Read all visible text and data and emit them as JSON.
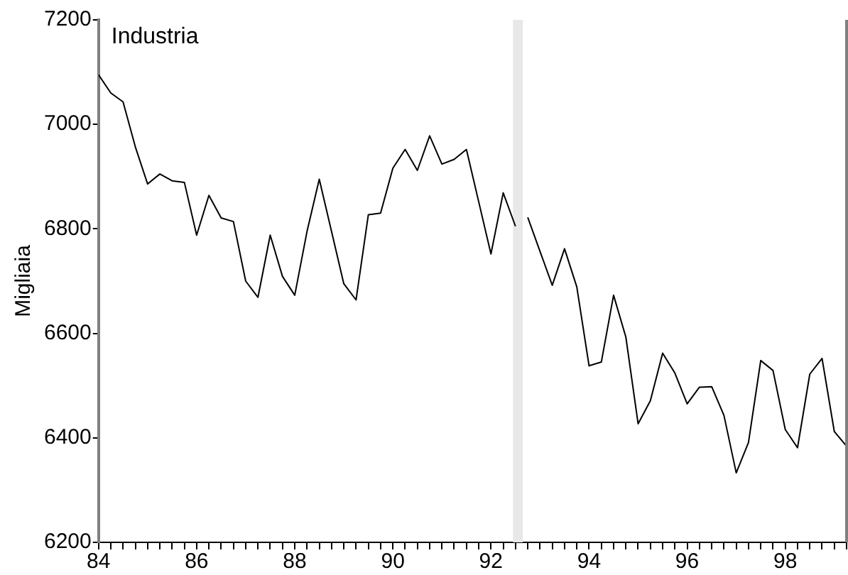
{
  "chart_data": {
    "type": "line",
    "title": "Industria",
    "ylabel": "Migliaia",
    "series": [
      {
        "color": "#000000",
        "x": [
          84,
          84.25,
          84.5,
          84.75,
          85,
          85.25,
          85.5,
          85.75,
          86,
          86.25,
          86.5,
          86.75,
          87,
          87.25,
          87.5,
          87.75,
          88,
          88.25,
          88.5,
          88.75,
          89,
          89.25,
          89.5,
          89.75,
          90,
          90.25,
          90.5,
          90.75,
          91,
          91.25,
          91.5,
          91.75,
          92,
          92.25,
          92.5
        ],
        "values": [
          7095,
          7060,
          7043,
          6957,
          6886,
          6905,
          6892,
          6889,
          6788,
          6864,
          6821,
          6814,
          6700,
          6669,
          6788,
          6709,
          6673,
          6795,
          6895,
          6795,
          6695,
          6664,
          6827,
          6830,
          6916,
          6952,
          6912,
          6978,
          6924,
          6933,
          6952,
          6852,
          6752,
          6869,
          6805
        ]
      },
      {
        "color": "#000000",
        "x": [
          92.75,
          93,
          93.25,
          93.5,
          93.75,
          94,
          94.25,
          94.5,
          94.75,
          95,
          95.25,
          95.5,
          95.75,
          96,
          96.25,
          96.5,
          96.75,
          97,
          97.25,
          97.5,
          97.75,
          98,
          98.25,
          98.5,
          98.75,
          99,
          99.25
        ],
        "values": [
          6822,
          6757,
          6692,
          6762,
          6689,
          6538,
          6545,
          6673,
          6593,
          6427,
          6471,
          6562,
          6524,
          6465,
          6497,
          6498,
          6443,
          6333,
          6391,
          6548,
          6529,
          6416,
          6381,
          6522,
          6552,
          6412,
          6384
        ]
      }
    ],
    "bands": [
      {
        "axis": "x",
        "from": 92.45,
        "to": 92.65,
        "color": "#e8e8e8"
      }
    ],
    "xlim": [
      84,
      99.25
    ],
    "xticks": [
      84,
      {
        "value": 84.25,
        "label": null
      },
      {
        "value": 84.5,
        "label": null
      },
      {
        "value": 84.75,
        "label": null
      },
      {
        "value": 85,
        "label": null
      },
      {
        "value": 85.25,
        "label": null
      },
      {
        "value": 85.5,
        "label": null
      },
      {
        "value": 85.75,
        "label": null
      },
      86,
      {
        "value": 86.25,
        "label": null
      },
      {
        "value": 86.5,
        "label": null
      },
      {
        "value": 86.75,
        "label": null
      },
      {
        "value": 87,
        "label": null
      },
      {
        "value": 87.25,
        "label": null
      },
      {
        "value": 87.5,
        "label": null
      },
      {
        "value": 87.75,
        "label": null
      },
      88,
      {
        "value": 88.25,
        "label": null
      },
      {
        "value": 88.5,
        "label": null
      },
      {
        "value": 88.75,
        "label": null
      },
      {
        "value": 89,
        "label": null
      },
      {
        "value": 89.25,
        "label": null
      },
      {
        "value": 89.5,
        "label": null
      },
      {
        "value": 89.75,
        "label": null
      },
      90,
      {
        "value": 90.25,
        "label": null
      },
      {
        "value": 90.5,
        "label": null
      },
      {
        "value": 90.75,
        "label": null
      },
      {
        "value": 91,
        "label": null
      },
      {
        "value": 91.25,
        "label": null
      },
      {
        "value": 91.5,
        "label": null
      },
      {
        "value": 91.75,
        "label": null
      },
      92,
      {
        "value": 92.25,
        "label": null
      },
      {
        "value": 92.5,
        "label": null
      },
      {
        "value": 92.75,
        "label": null
      },
      {
        "value": 93,
        "label": null
      },
      {
        "value": 93.25,
        "label": null
      },
      {
        "value": 93.5,
        "label": null
      },
      {
        "value": 93.75,
        "label": null
      },
      94,
      {
        "value": 94.25,
        "label": null
      },
      {
        "value": 94.5,
        "label": null
      },
      {
        "value": 94.75,
        "label": null
      },
      {
        "value": 95,
        "label": null
      },
      {
        "value": 95.25,
        "label": null
      },
      {
        "value": 95.5,
        "label": null
      },
      {
        "value": 95.75,
        "label": null
      },
      96,
      {
        "value": 96.25,
        "label": null
      },
      {
        "value": 96.5,
        "label": null
      },
      {
        "value": 96.75,
        "label": null
      },
      {
        "value": 97,
        "label": null
      },
      {
        "value": 97.25,
        "label": null
      },
      {
        "value": 97.5,
        "label": null
      },
      {
        "value": 97.75,
        "label": null
      },
      98,
      {
        "value": 98.25,
        "label": null
      },
      {
        "value": 98.5,
        "label": null
      },
      {
        "value": 98.75,
        "label": null
      },
      {
        "value": 99,
        "label": null
      },
      {
        "value": 99.25,
        "label": null
      }
    ],
    "ylim": [
      6200,
      7200
    ],
    "yticks": [
      6200,
      6400,
      6600,
      6800,
      7000,
      7200
    ],
    "grid": false,
    "legend": false,
    "marker": "none",
    "line_style": "solid"
  }
}
